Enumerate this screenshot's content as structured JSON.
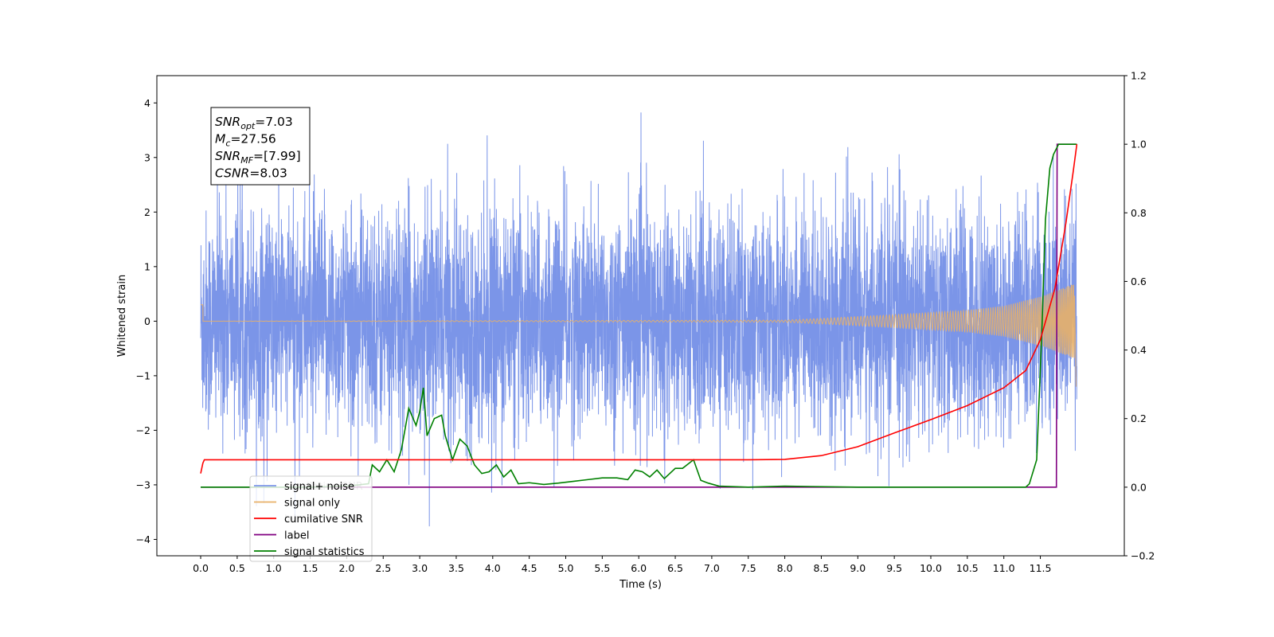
{
  "chart_data": {
    "type": "line",
    "title": "",
    "xlabel": "Time (s)",
    "ylabel": "Whitened strain",
    "xlim": [
      -0.6,
      12.65
    ],
    "ylim": [
      -4.3,
      4.5
    ],
    "y2lim": [
      -0.2,
      1.2
    ],
    "x_ticks": [
      "0.0",
      "0.5",
      "1.0",
      "1.5",
      "2.0",
      "2.5",
      "3.0",
      "3.5",
      "4.0",
      "4.5",
      "5.0",
      "5.5",
      "6.0",
      "6.5",
      "7.0",
      "7.5",
      "8.0",
      "8.5",
      "9.0",
      "9.5",
      "10.0",
      "10.5",
      "11.0",
      "11.5"
    ],
    "y_ticks": [
      "4",
      "3",
      "2",
      "1",
      "0",
      "−1",
      "−2",
      "−3",
      "−4"
    ],
    "y2_ticks": [
      "1.2",
      "1.0",
      "0.8",
      "0.6",
      "0.4",
      "0.2",
      "0.0",
      "−0.2"
    ],
    "grid": false,
    "legend_position": "lower-left",
    "legend": [
      "signal+ noise",
      "signal only",
      "cumilative SNR",
      "label",
      "signal statistics"
    ],
    "legend_ghost": [
      "cumilative SNR",
      "signal only",
      "label"
    ],
    "annotation": [
      {
        "main": "SNR",
        "sub": "opt",
        "value": "=7.03"
      },
      {
        "main": "M",
        "sub": "c",
        "value": "=27.56"
      },
      {
        "main": "SNR",
        "sub": "MF",
        "value": "=[7.99]"
      },
      {
        "main": "CSNR",
        "sub": "",
        "value": "=8.03"
      }
    ],
    "series": [
      {
        "name": "signal+ noise",
        "axis": "left",
        "color": "#7b95e8",
        "kind": "noise",
        "t_range": [
          0.0,
          12.0
        ],
        "noise_std": 1.0,
        "peak_max": 4.1,
        "peak_min": -3.9
      },
      {
        "name": "signal only",
        "axis": "left",
        "color": "#e8b068",
        "kind": "chirp",
        "envelope": [
          [
            0.0,
            0.0
          ],
          [
            8.0,
            0.02
          ],
          [
            8.5,
            0.05
          ],
          [
            9.5,
            0.12
          ],
          [
            10.5,
            0.2
          ],
          [
            11.0,
            0.28
          ],
          [
            11.5,
            0.45
          ],
          [
            11.8,
            0.6
          ],
          [
            11.95,
            0.68
          ]
        ]
      },
      {
        "name": "cumilative SNR",
        "axis": "right",
        "color": "#ff0000",
        "x": [
          0.0,
          0.03,
          0.05,
          1.0,
          2.0,
          3.0,
          4.0,
          5.0,
          6.0,
          7.0,
          7.5,
          8.0,
          8.5,
          9.0,
          9.5,
          10.0,
          10.5,
          11.0,
          11.3,
          11.5,
          11.7,
          11.85,
          11.95,
          12.0
        ],
        "y": [
          0.04,
          0.07,
          0.08,
          0.08,
          0.08,
          0.08,
          0.08,
          0.08,
          0.08,
          0.08,
          0.08,
          0.081,
          0.092,
          0.118,
          0.158,
          0.197,
          0.238,
          0.29,
          0.34,
          0.43,
          0.58,
          0.77,
          0.92,
          1.0
        ]
      },
      {
        "name": "label",
        "axis": "right",
        "color": "#800080",
        "x": [
          0.0,
          11.68,
          11.69,
          11.72,
          11.73,
          11.97,
          11.99
        ],
        "y": [
          0.0,
          0.0,
          0.0,
          0.0,
          1.0,
          1.0,
          1.0
        ]
      },
      {
        "name": "signal statistics",
        "axis": "right",
        "color": "#008000",
        "x": [
          0.0,
          1.5,
          2.0,
          2.3,
          2.35,
          2.45,
          2.55,
          2.65,
          2.75,
          2.85,
          2.95,
          3.0,
          3.05,
          3.1,
          3.2,
          3.3,
          3.35,
          3.45,
          3.55,
          3.65,
          3.75,
          3.85,
          3.95,
          4.05,
          4.15,
          4.25,
          4.35,
          4.5,
          4.7,
          4.9,
          5.1,
          5.3,
          5.5,
          5.7,
          5.85,
          5.95,
          6.05,
          6.15,
          6.25,
          6.35,
          6.5,
          6.6,
          6.75,
          6.85,
          6.95,
          7.1,
          7.5,
          8.0,
          9.0,
          10.0,
          11.0,
          11.3,
          11.35,
          11.45,
          11.52,
          11.57,
          11.63,
          11.68,
          11.75,
          11.82,
          12.0
        ],
        "y": [
          0.0,
          0.0,
          0.003,
          0.01,
          0.065,
          0.045,
          0.08,
          0.045,
          0.11,
          0.23,
          0.18,
          0.22,
          0.29,
          0.15,
          0.2,
          0.21,
          0.15,
          0.08,
          0.14,
          0.12,
          0.065,
          0.04,
          0.045,
          0.065,
          0.03,
          0.05,
          0.01,
          0.013,
          0.008,
          0.012,
          0.017,
          0.022,
          0.027,
          0.027,
          0.022,
          0.05,
          0.045,
          0.03,
          0.05,
          0.025,
          0.055,
          0.055,
          0.08,
          0.02,
          0.012,
          0.003,
          0.0,
          0.003,
          0.0,
          0.0,
          0.0,
          0.0,
          0.01,
          0.08,
          0.45,
          0.78,
          0.93,
          0.97,
          1.0,
          1.0,
          1.0
        ]
      }
    ]
  }
}
